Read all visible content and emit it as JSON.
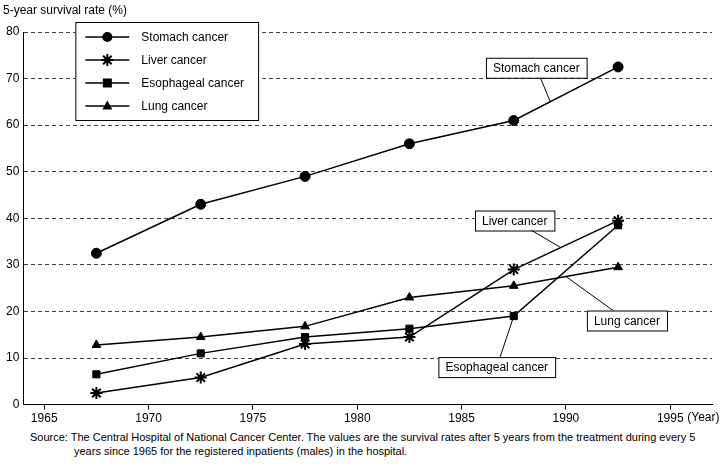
{
  "chart_data": {
    "type": "line",
    "y_label": "5-year survival rate (%)",
    "x_label": "(Year)",
    "source": "Source: The Central Hospital of National Cancer Center. The values are the survival rates after 5 years from the treatment during every 5 years since 1965 for the registered inpatients (males) in the hospital.",
    "x": [
      1967.5,
      1972.5,
      1977.5,
      1982.5,
      1987.5,
      1992.5
    ],
    "series": [
      {
        "name": "Stomach cancer",
        "color": "#000000",
        "marker": "circle",
        "line_style": "solid",
        "values": [
          32.5,
          43,
          49,
          56,
          61,
          72.5
        ]
      },
      {
        "name": "Liver cancer",
        "color": "#000000",
        "marker": "star",
        "line_style": "solid",
        "values": [
          2.5,
          5.8,
          13,
          14.5,
          29,
          39.5
        ]
      },
      {
        "name": "Esophageal cancer",
        "color": "#000000",
        "marker": "square",
        "line_style": "solid",
        "values": [
          6.5,
          11,
          14.5,
          16.3,
          19,
          38.5
        ]
      },
      {
        "name": "Lung cancer",
        "color": "#000000",
        "marker": "triangle",
        "line_style": "solid",
        "values": [
          12.8,
          14.5,
          16.8,
          23,
          25.5,
          29.5
        ]
      }
    ],
    "xlim": [
      1964,
      1997
    ],
    "xticks": [
      1965,
      1970,
      1975,
      1980,
      1985,
      1990,
      1995
    ],
    "ylim": [
      0,
      80
    ],
    "yticks": [
      0,
      10,
      20,
      30,
      40,
      50,
      60,
      70,
      80
    ],
    "grid": true,
    "legend": "upper left",
    "annotations": [
      "Stomach cancer",
      "Liver cancer",
      "Lung cancer",
      "Esophageal cancer"
    ]
  }
}
